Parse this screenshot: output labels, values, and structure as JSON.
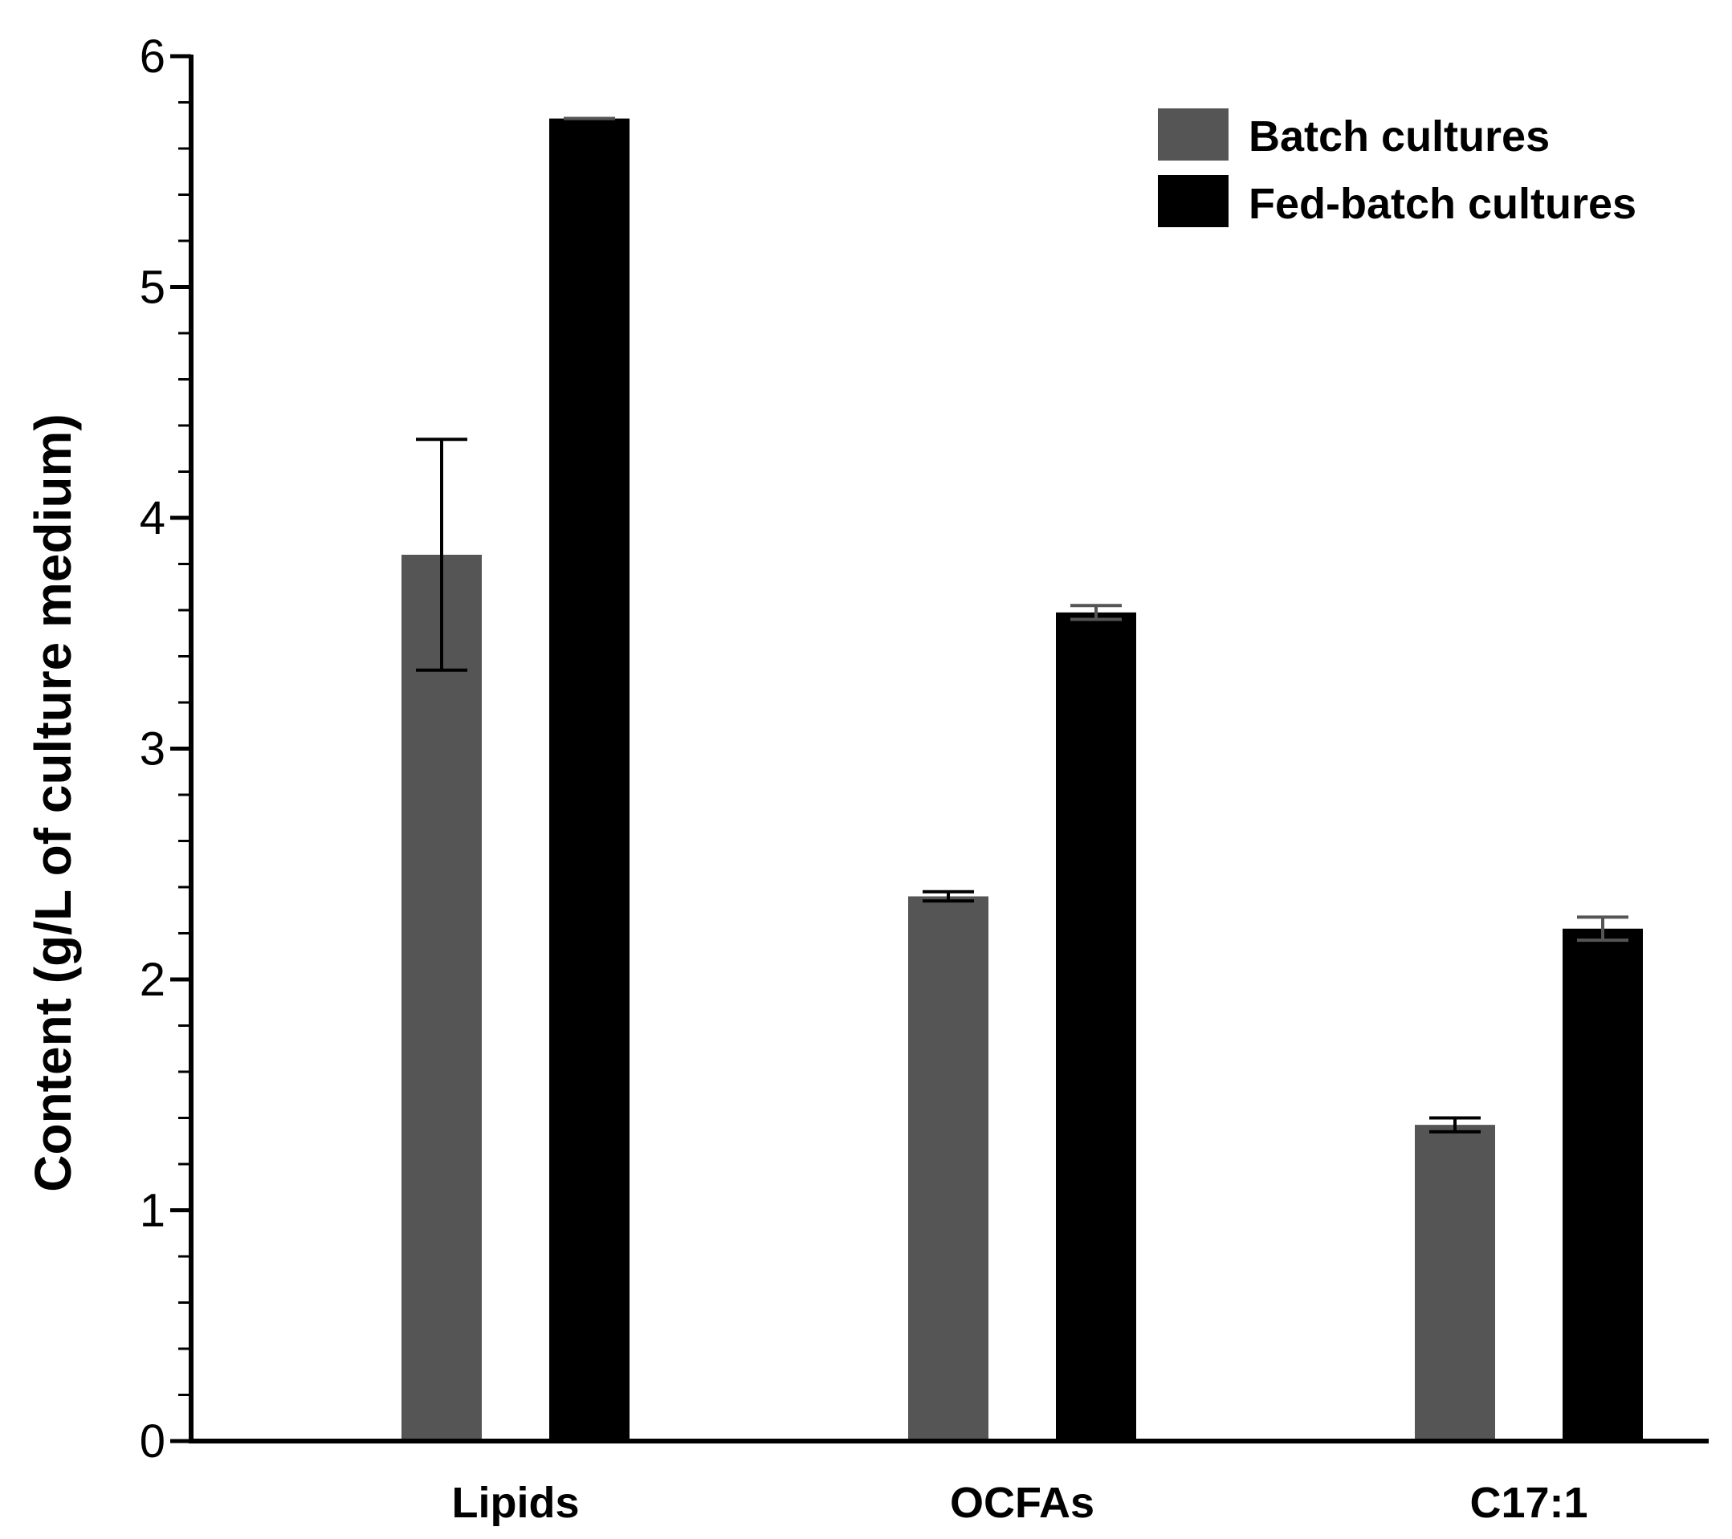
{
  "chart_data": {
    "type": "bar",
    "title": "",
    "xlabel": "",
    "ylabel": "Content (g/L of culture medium)",
    "ylim": [
      0,
      6
    ],
    "yticks": [
      "0",
      "1",
      "2",
      "3",
      "4",
      "5",
      "6"
    ],
    "minor_tick_step": 0.2,
    "grid": false,
    "legend_position": "top-right",
    "categories": [
      "Lipids",
      "OCFAs",
      "C17:1"
    ],
    "series": [
      {
        "name": "Batch cultures",
        "color": "#555555",
        "values": [
          3.84,
          2.36,
          1.37
        ],
        "errors": [
          0.5,
          0.02,
          0.03
        ],
        "error_color": "#000000"
      },
      {
        "name": "Fed-batch cultures",
        "color": "#000000",
        "values": [
          5.73,
          3.59,
          2.22
        ],
        "errors": [
          0.0,
          0.03,
          0.05
        ],
        "error_color": "#555555"
      }
    ]
  }
}
